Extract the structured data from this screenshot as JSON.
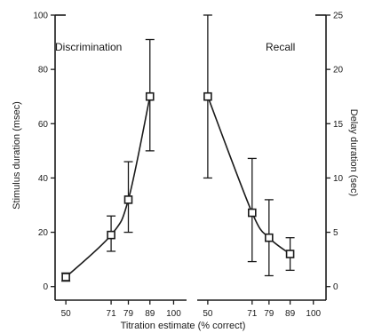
{
  "chart_data": {
    "type": "scatter",
    "xlabel": "Titration estimate (% correct)",
    "panels": [
      {
        "title": "Discrimination",
        "ylabel": "Stimulus duration (msec)",
        "xlim": [
          45,
          106
        ],
        "x_ticks": [
          "50",
          "71",
          "79",
          "89",
          "100"
        ],
        "x_tick_values": [
          50,
          71,
          79,
          89,
          100
        ],
        "ylim": [
          -5,
          100
        ],
        "y_ticks": [
          "0",
          "20",
          "40",
          "60",
          "80",
          "100"
        ],
        "y_tick_values": [
          0,
          20,
          40,
          60,
          80,
          100
        ],
        "points": [
          {
            "x": 50,
            "y": 3.5,
            "lo": 2,
            "hi": 5
          },
          {
            "x": 71,
            "y": 19,
            "lo": 13,
            "hi": 26
          },
          {
            "x": 79,
            "y": 32,
            "lo": 20,
            "hi": 46
          },
          {
            "x": 89,
            "y": 70,
            "lo": 50,
            "hi": 91
          }
        ]
      },
      {
        "title": "Recall",
        "ylabel": "Delay duration (sec)",
        "xlim": [
          45,
          106
        ],
        "x_ticks": [
          "50",
          "71",
          "79",
          "89",
          "100"
        ],
        "x_tick_values": [
          50,
          71,
          79,
          89,
          100
        ],
        "ylim": [
          -1.25,
          25
        ],
        "y_ticks": [
          "0",
          "5",
          "10",
          "15",
          "20",
          "25"
        ],
        "y_tick_values": [
          0,
          5,
          10,
          15,
          20,
          25
        ],
        "points": [
          {
            "x": 50,
            "y": 17.5,
            "lo": 10,
            "hi": 25
          },
          {
            "x": 71,
            "y": 6.8,
            "lo": 2.3,
            "hi": 11.8
          },
          {
            "x": 79,
            "y": 4.5,
            "lo": 1,
            "hi": 8
          },
          {
            "x": 89,
            "y": 3,
            "lo": 1.5,
            "hi": 4.5
          }
        ]
      }
    ]
  }
}
